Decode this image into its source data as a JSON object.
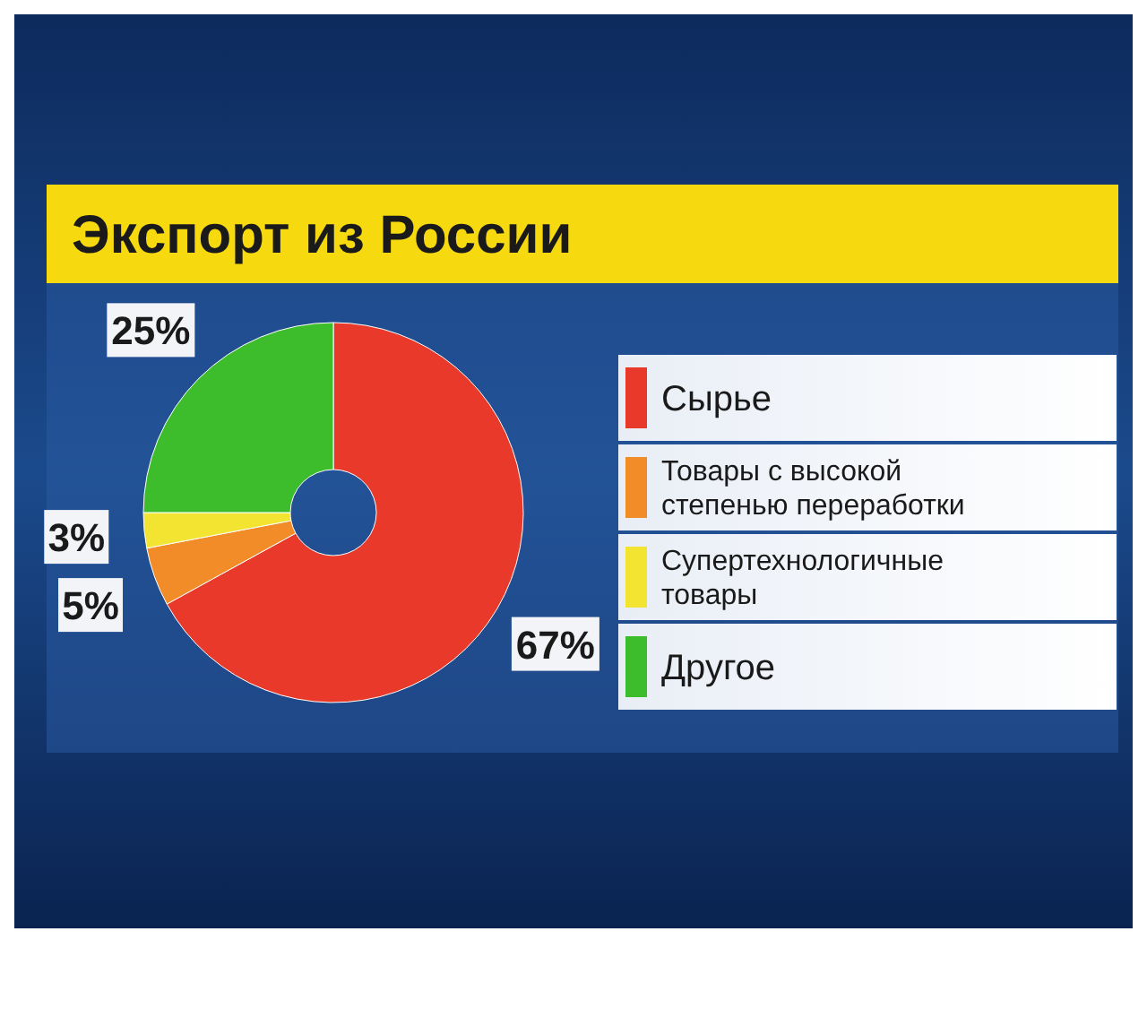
{
  "chart_data": {
    "type": "donut",
    "title": "Экспорт из России",
    "categories": [
      "Сырье",
      "Товары с высокой степенью переработки",
      "Супертехнологичные товары",
      "Другое"
    ],
    "values": [
      67,
      5,
      3,
      25
    ],
    "colors": [
      "#e8392a",
      "#f28c28",
      "#f3e431",
      "#3dbd2c"
    ],
    "value_labels": [
      "67%",
      "5%",
      "3%",
      "25%"
    ],
    "legend": "right"
  }
}
